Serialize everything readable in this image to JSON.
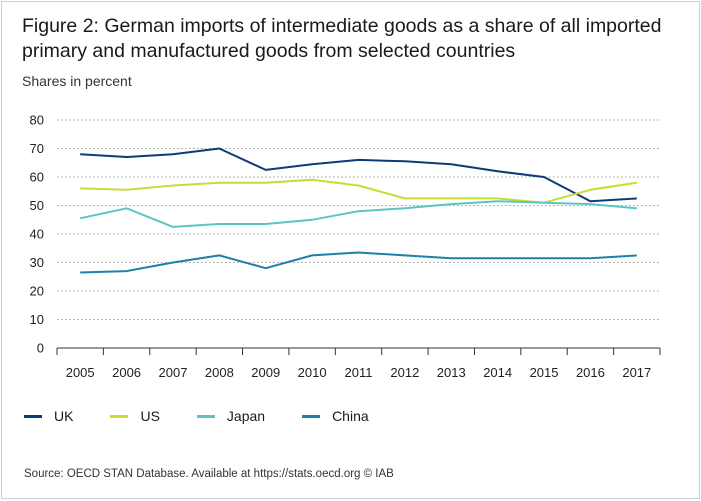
{
  "title": "Figure 2: German imports of intermediate goods as a share of all imported primary and manufactured goods from selected countries",
  "subtitle": "Shares in percent",
  "source": "Source: OECD STAN Database. Available at https://stats.oecd.org © IAB",
  "chart_data": {
    "type": "line",
    "x": [
      "2005",
      "2006",
      "2007",
      "2008",
      "2009",
      "2010",
      "2011",
      "2012",
      "2013",
      "2014",
      "2015",
      "2016",
      "2017"
    ],
    "ylim": [
      0,
      80
    ],
    "yticks": [
      0,
      10,
      20,
      30,
      40,
      50,
      60,
      70,
      80
    ],
    "grid": true,
    "legend": "bottom",
    "series": [
      {
        "name": "UK",
        "color": "#0d3b7a",
        "values": [
          68,
          67,
          68,
          70,
          62.5,
          64.5,
          66,
          65.5,
          64.5,
          62,
          60,
          51.5,
          52.5
        ]
      },
      {
        "name": "US",
        "color": "#cdd935",
        "values": [
          56,
          55.5,
          57,
          58,
          58,
          59,
          57,
          52.5,
          52.5,
          52.5,
          51,
          55.5,
          58
        ]
      },
      {
        "name": "Japan",
        "color": "#5bc5c3",
        "values": [
          45.5,
          49,
          42.5,
          43.5,
          43.5,
          45,
          48,
          49,
          50.5,
          51.5,
          51,
          50.5,
          49
        ]
      },
      {
        "name": "China",
        "color": "#1e7fa8",
        "values": [
          26.5,
          27,
          30,
          32.5,
          28,
          32.5,
          33.5,
          32.5,
          31.5,
          31.5,
          31.5,
          31.5,
          32.5
        ]
      }
    ]
  }
}
